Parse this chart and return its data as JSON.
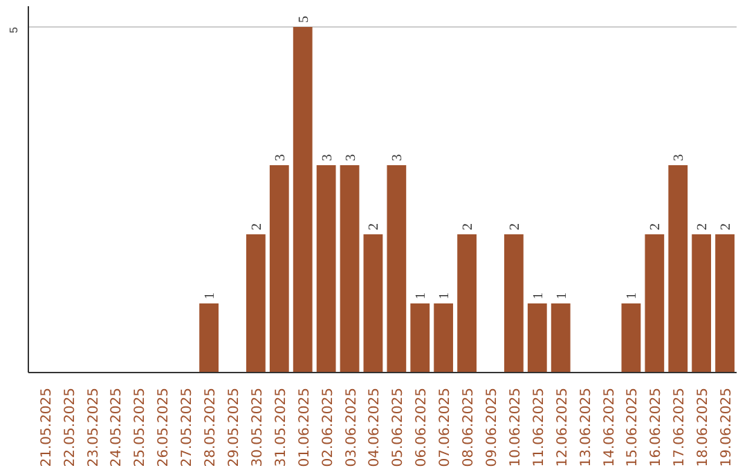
{
  "chart_data": {
    "type": "bar",
    "categories": [
      "21.05.2025",
      "22.05.2025",
      "23.05.2025",
      "24.05.2025",
      "25.05.2025",
      "26.05.2025",
      "27.05.2025",
      "28.05.2025",
      "29.05.2025",
      "30.05.2025",
      "31.05.2025",
      "01.06.2025",
      "02.06.2025",
      "03.06.2025",
      "04.06.2025",
      "05.06.2025",
      "06.06.2025",
      "07.06.2025",
      "08.06.2025",
      "09.06.2025",
      "10.06.2025",
      "11.06.2025",
      "12.06.2025",
      "13.06.2025",
      "14.06.2025",
      "15.06.2025",
      "16.06.2025",
      "17.06.2025",
      "18.06.2025",
      "19.06.2025"
    ],
    "values": [
      0,
      0,
      0,
      0,
      0,
      0,
      0,
      1,
      0,
      2,
      3,
      5,
      3,
      3,
      2,
      3,
      1,
      1,
      2,
      0,
      2,
      1,
      1,
      0,
      0,
      1,
      2,
      3,
      2,
      2
    ],
    "value_labels": [
      null,
      null,
      null,
      null,
      null,
      null,
      null,
      "1",
      null,
      "2",
      "3",
      "5",
      "3",
      "3",
      "2",
      "3",
      "1",
      "1",
      "2",
      null,
      "2",
      "1",
      "1",
      null,
      null,
      "1",
      "2",
      "3",
      "2",
      "2"
    ],
    "color": "#a0522d",
    "ylim": [
      0,
      5.3
    ],
    "yticks": [
      5
    ],
    "grid": "y"
  }
}
